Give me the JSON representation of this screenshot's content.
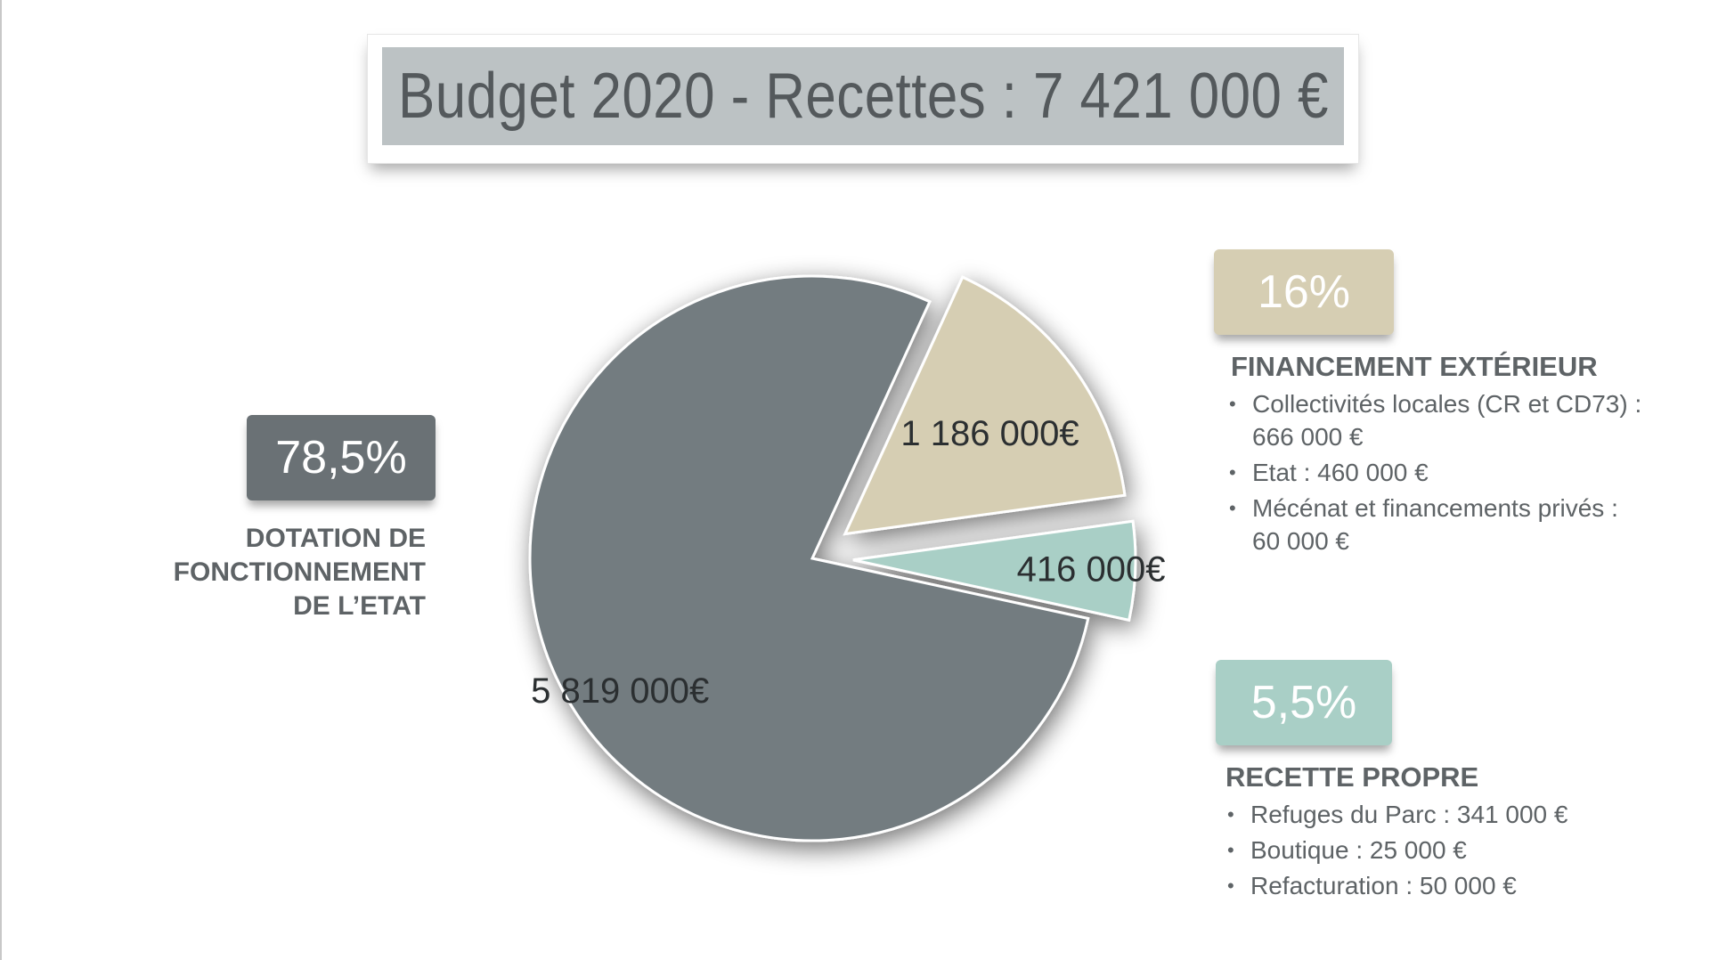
{
  "title": "Budget 2020 - Recettes : 7 421 000 €",
  "colors": {
    "dotation": "#737b80",
    "financement": "#d6ceb3",
    "recette": "#a9cfc6",
    "title_bg": "#bcc2c4"
  },
  "dotation": {
    "percent": "78,5%",
    "heading_lines": [
      "DOTATION DE",
      "FONCTIONNEMENT",
      "DE L’ETAT"
    ]
  },
  "financement": {
    "percent": "16%",
    "heading": "FINANCEMENT EXTÉRIEUR",
    "items": [
      {
        "line1": "Collectivités locales (CR et CD73)  :",
        "line2": "666 000 €"
      },
      {
        "line1": "Etat  : 460 000 €",
        "line2": ""
      },
      {
        "line1": "Mécénat et financements privés  :",
        "line2": "60 000 €"
      }
    ]
  },
  "recette": {
    "percent": "5,5%",
    "heading": "RECETTE PROPRE",
    "items": [
      {
        "line1": "Refuges du Parc  : 341 000 €",
        "line2": ""
      },
      {
        "line1": "Boutique  : 25 000 €",
        "line2": ""
      },
      {
        "line1": "Refacturation  : 50 000 €",
        "line2": ""
      }
    ]
  },
  "chart_data": {
    "type": "pie",
    "title": "Budget 2020 - Recettes : 7 421 000 €",
    "slices": [
      {
        "name": "DOTATION DE FONCTIONNEMENT DE L’ETAT",
        "value": 5819000,
        "label": "5 819 000€",
        "percent": "78,5%",
        "color": "#737b80"
      },
      {
        "name": "FINANCEMENT EXTÉRIEUR",
        "value": 1186000,
        "label": "1 186 000€",
        "percent": "16%",
        "color": "#d6ceb3"
      },
      {
        "name": "RECETTE PROPRE",
        "value": 416000,
        "label": "416 000€",
        "percent": "5,5%",
        "color": "#a9cfc6"
      }
    ]
  }
}
